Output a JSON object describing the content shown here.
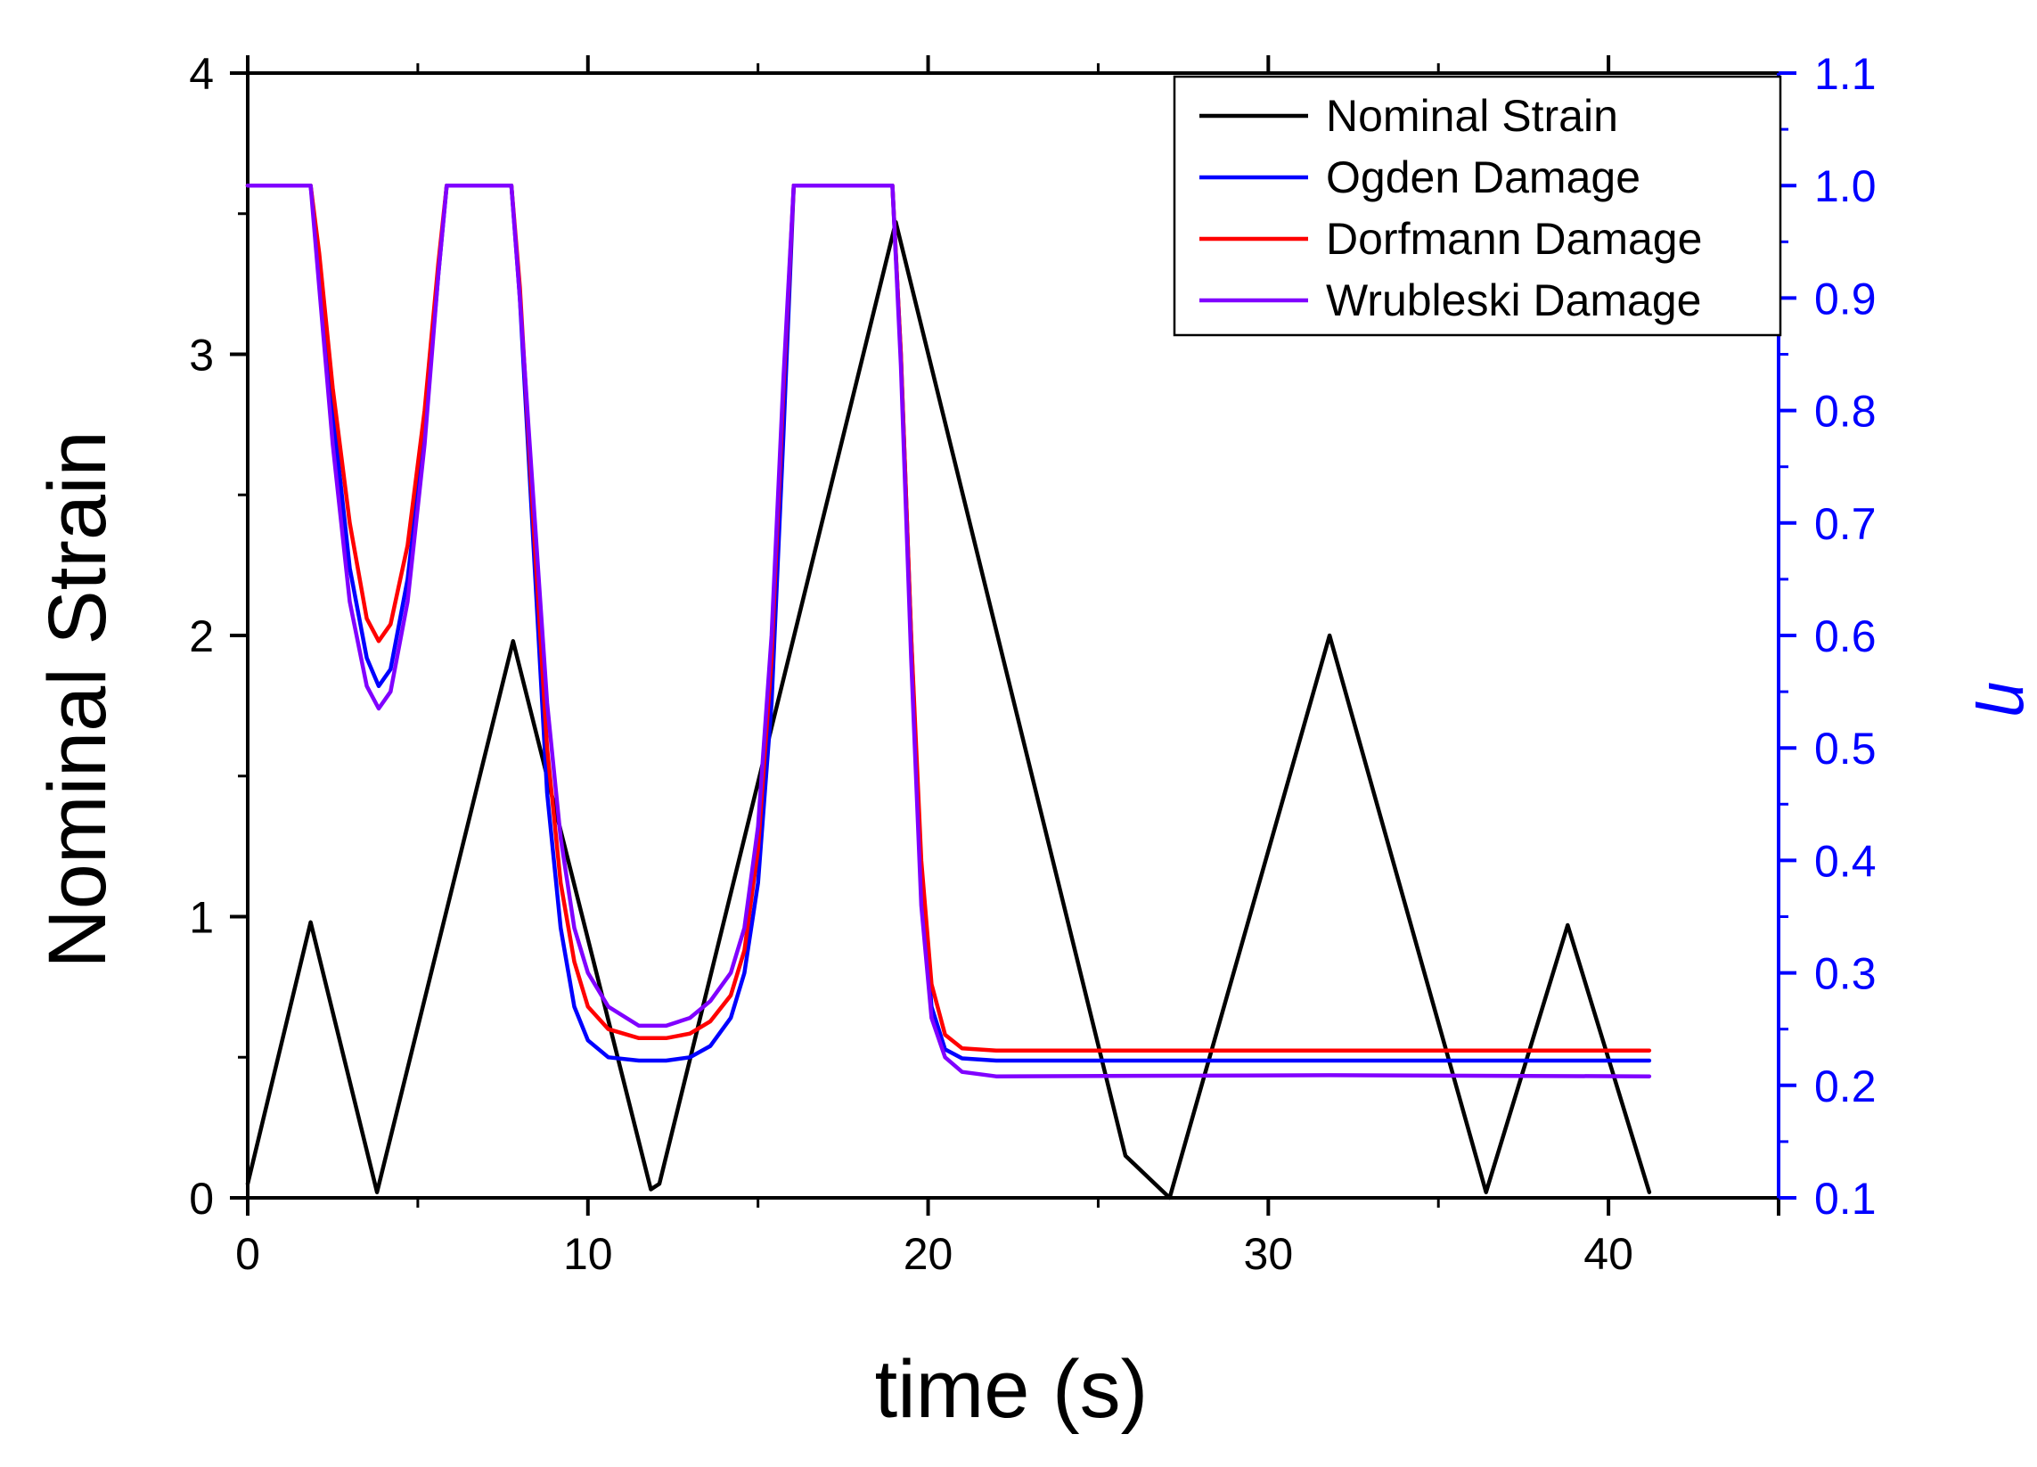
{
  "chart_data": {
    "type": "line",
    "xlabel": "time (s)",
    "ylabel": "Nominal Strain",
    "y2label": "η",
    "xlim": [
      0,
      45
    ],
    "ylim": [
      0,
      4
    ],
    "y2lim": [
      0.1,
      1.1
    ],
    "x_ticks": [
      "0",
      "10",
      "20",
      "30",
      "40"
    ],
    "y_ticks": [
      "0",
      "1",
      "2",
      "3",
      "4"
    ],
    "y2_ticks": [
      "0.1",
      "0.2",
      "0.3",
      "0.4",
      "0.5",
      "0.6",
      "0.7",
      "0.8",
      "0.9",
      "1.0",
      "1.1"
    ],
    "legend_position": "top-right",
    "series": [
      {
        "name": "Nominal Strain",
        "axis": "left",
        "color": "#000000",
        "points": [
          [
            0,
            0.05
          ],
          [
            1.85,
            0.98
          ],
          [
            3.8,
            0.02
          ],
          [
            7.8,
            1.98
          ],
          [
            11.85,
            0.03
          ],
          [
            12.1,
            0.05
          ],
          [
            19.05,
            3.47
          ],
          [
            25.8,
            0.15
          ],
          [
            27.1,
            0.0
          ],
          [
            31.8,
            2.0
          ],
          [
            36.4,
            0.02
          ],
          [
            38.8,
            0.97
          ],
          [
            41.2,
            0.02
          ]
        ]
      },
      {
        "name": "Ogden Damage",
        "axis": "right",
        "color": "#0000ff",
        "points": [
          [
            0,
            1.0
          ],
          [
            1.85,
            1.0
          ],
          [
            2.1,
            0.93
          ],
          [
            2.5,
            0.8
          ],
          [
            3.0,
            0.66
          ],
          [
            3.5,
            0.58
          ],
          [
            3.85,
            0.555
          ],
          [
            4.2,
            0.57
          ],
          [
            4.7,
            0.65
          ],
          [
            5.2,
            0.78
          ],
          [
            5.6,
            0.92
          ],
          [
            5.85,
            1.0
          ],
          [
            7.75,
            1.0
          ],
          [
            8.0,
            0.9
          ],
          [
            8.4,
            0.68
          ],
          [
            8.8,
            0.46
          ],
          [
            9.2,
            0.34
          ],
          [
            9.6,
            0.27
          ],
          [
            10.0,
            0.24
          ],
          [
            10.6,
            0.225
          ],
          [
            11.5,
            0.222
          ],
          [
            12.3,
            0.222
          ],
          [
            13.0,
            0.225
          ],
          [
            13.6,
            0.235
          ],
          [
            14.2,
            0.26
          ],
          [
            14.6,
            0.3
          ],
          [
            15.0,
            0.38
          ],
          [
            15.4,
            0.54
          ],
          [
            15.75,
            0.78
          ],
          [
            16.05,
            1.0
          ],
          [
            18.95,
            1.0
          ],
          [
            19.2,
            0.85
          ],
          [
            19.5,
            0.6
          ],
          [
            19.8,
            0.38
          ],
          [
            20.1,
            0.27
          ],
          [
            20.5,
            0.232
          ],
          [
            21.0,
            0.224
          ],
          [
            22.0,
            0.222
          ],
          [
            41.2,
            0.222
          ]
        ]
      },
      {
        "name": "Dorfmann Damage",
        "axis": "right",
        "color": "#ff0000",
        "points": [
          [
            0,
            1.0
          ],
          [
            1.85,
            1.0
          ],
          [
            2.1,
            0.94
          ],
          [
            2.5,
            0.82
          ],
          [
            3.0,
            0.7
          ],
          [
            3.5,
            0.615
          ],
          [
            3.85,
            0.595
          ],
          [
            4.2,
            0.61
          ],
          [
            4.7,
            0.68
          ],
          [
            5.2,
            0.8
          ],
          [
            5.6,
            0.93
          ],
          [
            5.85,
            1.0
          ],
          [
            7.75,
            1.0
          ],
          [
            8.0,
            0.91
          ],
          [
            8.4,
            0.7
          ],
          [
            8.8,
            0.5
          ],
          [
            9.2,
            0.38
          ],
          [
            9.6,
            0.31
          ],
          [
            10.0,
            0.27
          ],
          [
            10.6,
            0.25
          ],
          [
            11.5,
            0.242
          ],
          [
            12.3,
            0.242
          ],
          [
            13.0,
            0.246
          ],
          [
            13.6,
            0.257
          ],
          [
            14.2,
            0.28
          ],
          [
            14.6,
            0.32
          ],
          [
            15.0,
            0.41
          ],
          [
            15.4,
            0.58
          ],
          [
            15.75,
            0.82
          ],
          [
            16.05,
            1.0
          ],
          [
            18.95,
            1.0
          ],
          [
            19.2,
            0.85
          ],
          [
            19.5,
            0.6
          ],
          [
            19.8,
            0.4
          ],
          [
            20.1,
            0.29
          ],
          [
            20.5,
            0.245
          ],
          [
            21.0,
            0.233
          ],
          [
            22.0,
            0.231
          ],
          [
            41.2,
            0.231
          ]
        ]
      },
      {
        "name": "Wrubleski Damage",
        "axis": "right",
        "color": "#8000ff",
        "points": [
          [
            0,
            1.0
          ],
          [
            1.85,
            1.0
          ],
          [
            2.1,
            0.91
          ],
          [
            2.5,
            0.77
          ],
          [
            3.0,
            0.63
          ],
          [
            3.5,
            0.555
          ],
          [
            3.85,
            0.535
          ],
          [
            4.2,
            0.55
          ],
          [
            4.7,
            0.63
          ],
          [
            5.2,
            0.77
          ],
          [
            5.6,
            0.92
          ],
          [
            5.85,
            1.0
          ],
          [
            7.75,
            1.0
          ],
          [
            8.0,
            0.9
          ],
          [
            8.4,
            0.72
          ],
          [
            8.8,
            0.54
          ],
          [
            9.2,
            0.42
          ],
          [
            9.6,
            0.34
          ],
          [
            10.0,
            0.3
          ],
          [
            10.6,
            0.27
          ],
          [
            11.5,
            0.253
          ],
          [
            12.3,
            0.253
          ],
          [
            13.0,
            0.26
          ],
          [
            13.6,
            0.275
          ],
          [
            14.2,
            0.3
          ],
          [
            14.6,
            0.34
          ],
          [
            15.0,
            0.43
          ],
          [
            15.4,
            0.6
          ],
          [
            15.75,
            0.83
          ],
          [
            16.05,
            1.0
          ],
          [
            18.95,
            1.0
          ],
          [
            19.2,
            0.84
          ],
          [
            19.5,
            0.58
          ],
          [
            19.8,
            0.36
          ],
          [
            20.1,
            0.26
          ],
          [
            20.5,
            0.225
          ],
          [
            21.0,
            0.212
          ],
          [
            22.0,
            0.208
          ],
          [
            31.8,
            0.209
          ],
          [
            41.2,
            0.208
          ]
        ]
      }
    ]
  }
}
